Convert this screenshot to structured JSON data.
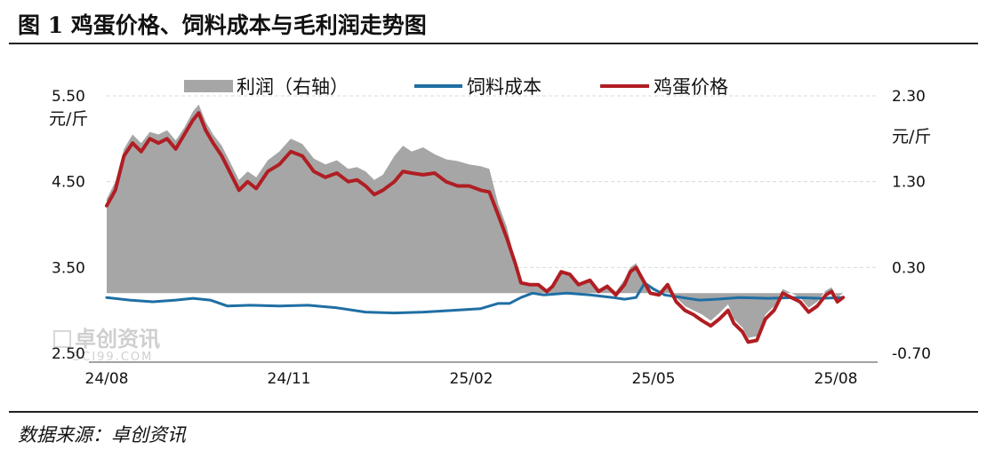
{
  "header": {
    "title": "图 1  鸡蛋价格、饲料成本与毛利润走势图"
  },
  "footer": {
    "source": "数据来源：卓创资讯"
  },
  "watermark": {
    "main": "卓创资讯",
    "sub": "SCI99.COM"
  },
  "colors": {
    "profit": "#a6a6a6",
    "feed": "#1f6fa3",
    "egg": "#b01e23"
  },
  "chart_data": {
    "type": "line",
    "title": "鸡蛋价格、饲料成本与毛利润走势图",
    "left_axis": {
      "unit": "元/斤",
      "range": [
        2.5,
        5.5
      ],
      "ticks": [
        "5.50",
        "4.50",
        "3.50",
        "2.50"
      ]
    },
    "right_axis": {
      "unit": "元/斤",
      "range": [
        -0.7,
        2.3
      ],
      "ticks": [
        "2.30",
        "1.30",
        "0.30",
        "-0.70"
      ]
    },
    "x_ticks": [
      "24/08",
      "24/11",
      "25/02",
      "25/05",
      "25/08"
    ],
    "legend": {
      "placement": "top",
      "profit": "利润（右轴）",
      "feed": "饲料成本",
      "egg": "鸡蛋价格"
    },
    "grid": "horizontal dashed",
    "x_range": [
      0,
      13.4
    ],
    "series": [
      {
        "name": "鸡蛋价格",
        "axis": "left",
        "kind": "line",
        "points": [
          [
            0,
            4.22
          ],
          [
            0.15,
            4.4
          ],
          [
            0.3,
            4.8
          ],
          [
            0.45,
            4.95
          ],
          [
            0.6,
            4.85
          ],
          [
            0.75,
            5.0
          ],
          [
            0.9,
            4.95
          ],
          [
            1.05,
            5.0
          ],
          [
            1.2,
            4.88
          ],
          [
            1.35,
            5.05
          ],
          [
            1.5,
            5.22
          ],
          [
            1.6,
            5.3
          ],
          [
            1.72,
            5.1
          ],
          [
            1.85,
            4.95
          ],
          [
            2.0,
            4.8
          ],
          [
            2.15,
            4.6
          ],
          [
            2.3,
            4.4
          ],
          [
            2.45,
            4.5
          ],
          [
            2.6,
            4.42
          ],
          [
            2.8,
            4.62
          ],
          [
            3.0,
            4.7
          ],
          [
            3.2,
            4.85
          ],
          [
            3.4,
            4.8
          ],
          [
            3.6,
            4.62
          ],
          [
            3.8,
            4.55
          ],
          [
            4.0,
            4.6
          ],
          [
            4.2,
            4.5
          ],
          [
            4.35,
            4.52
          ],
          [
            4.5,
            4.45
          ],
          [
            4.65,
            4.35
          ],
          [
            4.8,
            4.4
          ],
          [
            5.0,
            4.5
          ],
          [
            5.15,
            4.62
          ],
          [
            5.3,
            4.6
          ],
          [
            5.5,
            4.58
          ],
          [
            5.7,
            4.6
          ],
          [
            5.9,
            4.5
          ],
          [
            6.1,
            4.45
          ],
          [
            6.3,
            4.45
          ],
          [
            6.5,
            4.4
          ],
          [
            6.65,
            4.38
          ],
          [
            6.8,
            4.12
          ],
          [
            6.95,
            3.85
          ],
          [
            7.1,
            3.55
          ],
          [
            7.2,
            3.32
          ],
          [
            7.35,
            3.3
          ],
          [
            7.5,
            3.3
          ],
          [
            7.65,
            3.22
          ],
          [
            7.75,
            3.28
          ],
          [
            7.9,
            3.45
          ],
          [
            8.05,
            3.42
          ],
          [
            8.2,
            3.3
          ],
          [
            8.4,
            3.35
          ],
          [
            8.55,
            3.22
          ],
          [
            8.7,
            3.28
          ],
          [
            8.85,
            3.18
          ],
          [
            9.0,
            3.3
          ],
          [
            9.1,
            3.45
          ],
          [
            9.2,
            3.5
          ],
          [
            9.3,
            3.38
          ],
          [
            9.45,
            3.2
          ],
          [
            9.6,
            3.18
          ],
          [
            9.75,
            3.3
          ],
          [
            9.9,
            3.1
          ],
          [
            10.05,
            3.0
          ],
          [
            10.2,
            2.95
          ],
          [
            10.35,
            2.88
          ],
          [
            10.5,
            2.82
          ],
          [
            10.65,
            2.9
          ],
          [
            10.8,
            3.0
          ],
          [
            10.9,
            2.85
          ],
          [
            11.05,
            2.75
          ],
          [
            11.15,
            2.63
          ],
          [
            11.3,
            2.65
          ],
          [
            11.45,
            2.9
          ],
          [
            11.6,
            3.0
          ],
          [
            11.75,
            3.2
          ],
          [
            11.9,
            3.15
          ],
          [
            12.05,
            3.1
          ],
          [
            12.2,
            2.98
          ],
          [
            12.35,
            3.05
          ],
          [
            12.5,
            3.18
          ],
          [
            12.6,
            3.22
          ],
          [
            12.7,
            3.1
          ],
          [
            12.8,
            3.15
          ]
        ]
      },
      {
        "name": "饲料成本",
        "axis": "left",
        "kind": "line",
        "points": [
          [
            0,
            3.15
          ],
          [
            0.4,
            3.12
          ],
          [
            0.8,
            3.1
          ],
          [
            1.2,
            3.12
          ],
          [
            1.5,
            3.14
          ],
          [
            1.8,
            3.12
          ],
          [
            2.1,
            3.05
          ],
          [
            2.5,
            3.06
          ],
          [
            3.0,
            3.05
          ],
          [
            3.5,
            3.06
          ],
          [
            4.0,
            3.03
          ],
          [
            4.5,
            2.98
          ],
          [
            5.0,
            2.97
          ],
          [
            5.5,
            2.98
          ],
          [
            6.0,
            3.0
          ],
          [
            6.5,
            3.02
          ],
          [
            6.8,
            3.08
          ],
          [
            7.0,
            3.08
          ],
          [
            7.2,
            3.15
          ],
          [
            7.4,
            3.2
          ],
          [
            7.6,
            3.18
          ],
          [
            8.0,
            3.2
          ],
          [
            8.4,
            3.18
          ],
          [
            8.8,
            3.15
          ],
          [
            9.0,
            3.13
          ],
          [
            9.2,
            3.15
          ],
          [
            9.35,
            3.32
          ],
          [
            9.5,
            3.25
          ],
          [
            9.7,
            3.18
          ],
          [
            10.0,
            3.15
          ],
          [
            10.3,
            3.12
          ],
          [
            10.6,
            3.13
          ],
          [
            11.0,
            3.15
          ],
          [
            11.5,
            3.14
          ],
          [
            12.0,
            3.15
          ],
          [
            12.4,
            3.14
          ],
          [
            12.8,
            3.15
          ]
        ]
      },
      {
        "name": "利润",
        "axis": "right",
        "kind": "area",
        "points": [
          [
            0,
            1.1
          ],
          [
            0.15,
            1.3
          ],
          [
            0.3,
            1.68
          ],
          [
            0.45,
            1.85
          ],
          [
            0.6,
            1.75
          ],
          [
            0.75,
            1.88
          ],
          [
            0.9,
            1.85
          ],
          [
            1.05,
            1.9
          ],
          [
            1.2,
            1.78
          ],
          [
            1.35,
            1.93
          ],
          [
            1.5,
            2.12
          ],
          [
            1.6,
            2.2
          ],
          [
            1.72,
            2.0
          ],
          [
            1.85,
            1.85
          ],
          [
            2.0,
            1.72
          ],
          [
            2.15,
            1.52
          ],
          [
            2.3,
            1.32
          ],
          [
            2.45,
            1.42
          ],
          [
            2.6,
            1.35
          ],
          [
            2.8,
            1.55
          ],
          [
            3.0,
            1.65
          ],
          [
            3.2,
            1.8
          ],
          [
            3.4,
            1.74
          ],
          [
            3.6,
            1.57
          ],
          [
            3.8,
            1.5
          ],
          [
            4.0,
            1.55
          ],
          [
            4.2,
            1.45
          ],
          [
            4.35,
            1.47
          ],
          [
            4.5,
            1.42
          ],
          [
            4.65,
            1.32
          ],
          [
            4.8,
            1.38
          ],
          [
            5.0,
            1.6
          ],
          [
            5.15,
            1.72
          ],
          [
            5.3,
            1.65
          ],
          [
            5.5,
            1.7
          ],
          [
            5.7,
            1.62
          ],
          [
            5.9,
            1.56
          ],
          [
            6.1,
            1.54
          ],
          [
            6.3,
            1.5
          ],
          [
            6.5,
            1.48
          ],
          [
            6.65,
            1.45
          ],
          [
            6.8,
            1.05
          ],
          [
            6.95,
            0.78
          ],
          [
            7.1,
            0.38
          ],
          [
            7.2,
            0.12
          ],
          [
            7.35,
            0.08
          ],
          [
            7.5,
            0.08
          ],
          [
            7.65,
            0.02
          ],
          [
            7.75,
            0.06
          ],
          [
            7.9,
            0.24
          ],
          [
            8.05,
            0.2
          ],
          [
            8.2,
            0.12
          ],
          [
            8.4,
            0.16
          ],
          [
            8.55,
            0.04
          ],
          [
            8.7,
            0.1
          ],
          [
            8.85,
            0.02
          ],
          [
            9.0,
            0.16
          ],
          [
            9.1,
            0.3
          ],
          [
            9.2,
            0.35
          ],
          [
            9.3,
            0.22
          ],
          [
            9.45,
            -0.02
          ],
          [
            9.6,
            -0.03
          ],
          [
            9.75,
            0.12
          ],
          [
            9.9,
            -0.05
          ],
          [
            10.05,
            -0.15
          ],
          [
            10.2,
            -0.2
          ],
          [
            10.35,
            -0.25
          ],
          [
            10.5,
            -0.32
          ],
          [
            10.65,
            -0.23
          ],
          [
            10.8,
            -0.13
          ],
          [
            10.9,
            -0.3
          ],
          [
            11.05,
            -0.4
          ],
          [
            11.15,
            -0.52
          ],
          [
            11.3,
            -0.5
          ],
          [
            11.45,
            -0.25
          ],
          [
            11.6,
            -0.15
          ],
          [
            11.75,
            0.05
          ],
          [
            11.9,
            0.0
          ],
          [
            12.05,
            -0.05
          ],
          [
            12.2,
            -0.17
          ],
          [
            12.35,
            -0.1
          ],
          [
            12.5,
            0.03
          ],
          [
            12.6,
            0.07
          ],
          [
            12.7,
            -0.05
          ],
          [
            12.8,
            0.0
          ]
        ]
      }
    ]
  }
}
